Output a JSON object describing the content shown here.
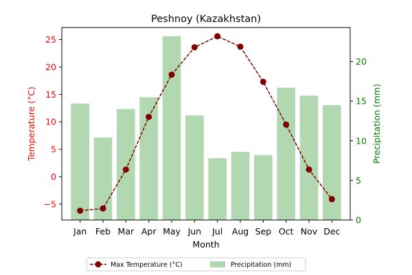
{
  "chart_data": {
    "type": "bar",
    "title": "Peshnoy (Kazakhstan)",
    "xlabel": "Month",
    "ylabel_left": "Temperature (°C)",
    "ylabel_right": "Precipitation (mm)",
    "categories": [
      "Jan",
      "Feb",
      "Mar",
      "Apr",
      "May",
      "Jun",
      "Jul",
      "Aug",
      "Sep",
      "Oct",
      "Nov",
      "Dec"
    ],
    "series": [
      {
        "name": "Max Temperature (°C)",
        "type": "line",
        "axis": "left",
        "values": [
          -6.2,
          -5.8,
          1.3,
          10.9,
          18.6,
          23.6,
          25.6,
          23.7,
          17.3,
          9.5,
          1.3,
          -4.1
        ]
      },
      {
        "name": "Precipitation (mm)",
        "type": "bar",
        "axis": "right",
        "values": [
          14.7,
          10.4,
          14.0,
          15.5,
          23.2,
          13.2,
          7.8,
          8.6,
          8.2,
          16.7,
          15.7,
          14.5
        ]
      }
    ],
    "ylim_left": [
      -7.9,
      27.2
    ],
    "ylim_right": [
      0,
      24.3
    ],
    "yticks_left": [
      -5,
      0,
      5,
      10,
      15,
      20,
      25
    ],
    "yticks_right": [
      0,
      5,
      10,
      15,
      20
    ],
    "grid": false,
    "legend_position": "bottom-center",
    "colors": {
      "line": "#7f0000",
      "bars": "#b2d8b2",
      "left_axis": "#ff0000",
      "right_axis": "#008000"
    }
  }
}
